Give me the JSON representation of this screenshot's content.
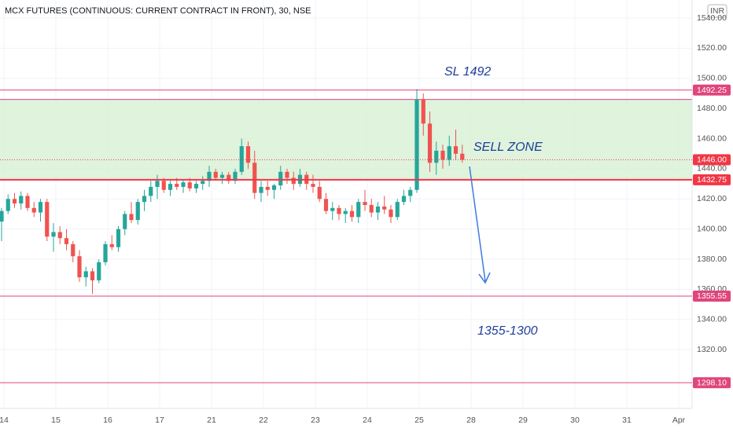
{
  "chart_data": {
    "type": "candlestick",
    "title": "MCX FUTURES (CONTINUOUS: CURRENT CONTRACT IN FRONT), 30, NSE",
    "currency": "INR",
    "annotations": [
      "SL 1492",
      "SELL ZONE",
      "1355-1300"
    ],
    "xlabels": [
      "14",
      "15",
      "16",
      "17",
      "21",
      "22",
      "23",
      "24",
      "25",
      "28",
      "29",
      "30",
      "31",
      "Apr"
    ],
    "ylim": [
      1281,
      1552
    ],
    "yticks": [
      {
        "value": 1320,
        "label": "1320.00"
      },
      {
        "value": 1340,
        "label": "1340.00"
      },
      {
        "value": 1360,
        "label": "1360.00"
      },
      {
        "value": 1380,
        "label": "1380.00"
      },
      {
        "value": 1400,
        "label": "1400.00"
      },
      {
        "value": 1420,
        "label": "1420.00"
      },
      {
        "value": 1440,
        "label": "1440.00"
      },
      {
        "value": 1460,
        "label": "1460.00"
      },
      {
        "value": 1480,
        "label": "1480.00"
      },
      {
        "value": 1500,
        "label": "1500.00"
      },
      {
        "value": 1520,
        "label": "1520.00"
      },
      {
        "value": 1540,
        "label": "1540.00"
      }
    ],
    "zone": [
      1432.75,
      1486
    ],
    "zone_color": "#d7f0d4",
    "up_color": "#26a69a",
    "down_color": "#ef5350",
    "levels": [
      {
        "value": 1492.25,
        "label": "1492.25",
        "color": "#e0457b"
      },
      {
        "value": 1446,
        "label": "1446.00",
        "color": "#f23645"
      },
      {
        "value": 1432.75,
        "label": "1432.75",
        "color": "#f23645"
      },
      {
        "value": 1355.55,
        "label": "1355.55",
        "color": "#e0457b"
      },
      {
        "value": 1298.1,
        "label": "1298.10",
        "color": "#e0457b"
      }
    ],
    "open": [
      1405,
      1412,
      1420,
      1417,
      1422,
      1414,
      1411,
      1418,
      1395,
      1398,
      1394,
      1390,
      1382,
      1368,
      1372,
      1366,
      1378,
      1390,
      1388,
      1400,
      1410,
      1406,
      1418,
      1422,
      1428,
      1432,
      1426,
      1430,
      1428,
      1431,
      1427,
      1430,
      1432,
      1438,
      1434,
      1436,
      1432,
      1438,
      1455,
      1444,
      1424,
      1428,
      1426,
      1429,
      1438,
      1434,
      1430,
      1436,
      1430,
      1428,
      1420,
      1412,
      1414,
      1410,
      1412,
      1408,
      1418,
      1416,
      1411,
      1415,
      1413,
      1408,
      1418,
      1422,
      1426,
      1486,
      1470,
      1444,
      1452,
      1446,
      1455,
      1450
    ],
    "high": [
      1414,
      1423,
      1424,
      1425,
      1424,
      1418,
      1420,
      1420,
      1404,
      1402,
      1400,
      1392,
      1386,
      1375,
      1374,
      1380,
      1392,
      1396,
      1402,
      1412,
      1418,
      1420,
      1426,
      1432,
      1436,
      1434,
      1432,
      1434,
      1433,
      1434,
      1432,
      1435,
      1442,
      1440,
      1438,
      1438,
      1440,
      1460,
      1458,
      1452,
      1432,
      1432,
      1430,
      1442,
      1440,
      1438,
      1440,
      1438,
      1436,
      1432,
      1424,
      1418,
      1416,
      1414,
      1416,
      1420,
      1426,
      1420,
      1418,
      1422,
      1416,
      1420,
      1426,
      1428,
      1493,
      1490,
      1478,
      1458,
      1456,
      1462,
      1466,
      1456
    ],
    "low": [
      1392,
      1410,
      1414,
      1413,
      1412,
      1408,
      1405,
      1392,
      1385,
      1390,
      1386,
      1378,
      1365,
      1362,
      1357,
      1364,
      1376,
      1386,
      1385,
      1396,
      1404,
      1403,
      1412,
      1418,
      1420,
      1424,
      1422,
      1426,
      1424,
      1425,
      1424,
      1426,
      1428,
      1432,
      1430,
      1430,
      1430,
      1436,
      1440,
      1420,
      1418,
      1422,
      1420,
      1426,
      1430,
      1426,
      1428,
      1426,
      1424,
      1418,
      1410,
      1406,
      1406,
      1404,
      1405,
      1404,
      1412,
      1408,
      1406,
      1410,
      1404,
      1406,
      1416,
      1418,
      1424,
      1462,
      1438,
      1436,
      1440,
      1442,
      1446,
      1444
    ],
    "close": [
      1412,
      1420,
      1417,
      1422,
      1414,
      1411,
      1418,
      1395,
      1398,
      1394,
      1390,
      1382,
      1368,
      1372,
      1366,
      1378,
      1390,
      1388,
      1400,
      1410,
      1406,
      1418,
      1422,
      1428,
      1432,
      1426,
      1430,
      1428,
      1431,
      1427,
      1430,
      1432,
      1438,
      1434,
      1436,
      1432,
      1438,
      1455,
      1444,
      1424,
      1428,
      1426,
      1429,
      1438,
      1434,
      1430,
      1436,
      1430,
      1428,
      1420,
      1412,
      1414,
      1410,
      1412,
      1408,
      1418,
      1416,
      1411,
      1415,
      1413,
      1408,
      1418,
      1422,
      1426,
      1486,
      1470,
      1444,
      1452,
      1446,
      1455,
      1450,
      1446
    ]
  }
}
